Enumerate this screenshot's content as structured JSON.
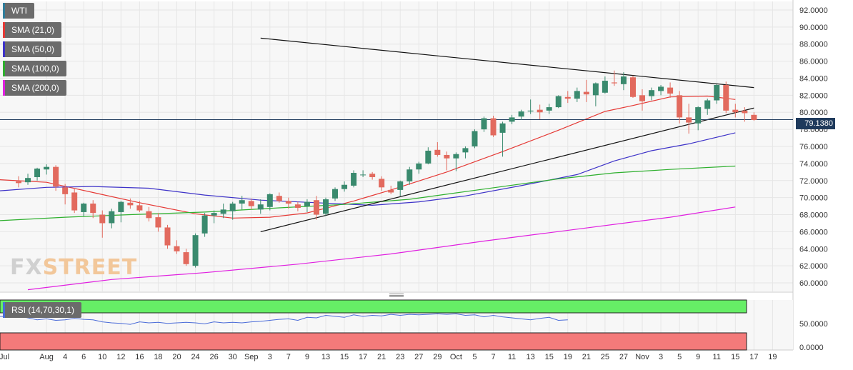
{
  "legend": {
    "items": [
      {
        "label": "WTI",
        "color": "#2e7d9b"
      },
      {
        "label": "SMA (21,0)",
        "color": "#e53935"
      },
      {
        "label": "SMA (50,0)",
        "color": "#3d32c8"
      },
      {
        "label": "SMA (100,0)",
        "color": "#2eaf2e"
      },
      {
        "label": "SMA (200,0)",
        "color": "#e020e0"
      }
    ]
  },
  "rsi": {
    "label": "RSI (14,70,30,1)",
    "color": "#4a6bd8",
    "overbought_color": "#66ee66",
    "oversold_color": "#f47a7a",
    "values": [
      63,
      62,
      64,
      60,
      56,
      58,
      55,
      56,
      59,
      57,
      56,
      52,
      50,
      49,
      47,
      52,
      50,
      51,
      49,
      50,
      51,
      50,
      48,
      52,
      50,
      51,
      50,
      52,
      53,
      55,
      57,
      58,
      55,
      61,
      60,
      65,
      63,
      61,
      66,
      63,
      65,
      64,
      67,
      65,
      67,
      66,
      67,
      68,
      67,
      68,
      65,
      66,
      62,
      65,
      62,
      60,
      58,
      56,
      59,
      61,
      55,
      56
    ]
  },
  "watermark": {
    "part1": "FX",
    "part2": "STREET"
  },
  "current_price": {
    "label": "79.1380",
    "value": 79.138
  },
  "colors": {
    "up": "#3a8a6e",
    "down": "#e26a5e",
    "grid": "#e6e6e6",
    "trendline": "#111111",
    "price_line": "#1f3a5c"
  },
  "chart_data": {
    "type": "candlestick",
    "title": "",
    "ylim": [
      59,
      93
    ],
    "yticks": [
      "92.0000",
      "90.0000",
      "88.0000",
      "86.0000",
      "84.0000",
      "82.0000",
      "80.0000",
      "78.0000",
      "76.0000",
      "74.0000",
      "72.0000",
      "70.0000",
      "68.0000",
      "66.0000",
      "64.0000",
      "62.0000",
      "60.0000"
    ],
    "ytick_values": [
      92,
      90,
      88,
      86,
      84,
      82,
      80,
      78,
      76,
      74,
      72,
      70,
      68,
      66,
      64,
      62,
      60
    ],
    "xticks": [
      "Jul",
      "Aug",
      "4",
      "6",
      "10",
      "12",
      "16",
      "18",
      "20",
      "24",
      "26",
      "30",
      "Sep",
      "3",
      "7",
      "9",
      "13",
      "15",
      "17",
      "21",
      "23",
      "27",
      "29",
      "Oct",
      "5",
      "7",
      "11",
      "13",
      "15",
      "19",
      "21",
      "25",
      "27",
      "Nov",
      "3",
      "5",
      "9",
      "11",
      "15",
      "17",
      "19"
    ],
    "xtick_index": [
      -2,
      3,
      5,
      7,
      9,
      11,
      13,
      15,
      17,
      19,
      21,
      23,
      25,
      27,
      29,
      31,
      33,
      35,
      37,
      39,
      41,
      43,
      45,
      47,
      49,
      51,
      53,
      55,
      57,
      59,
      61,
      63,
      65,
      67,
      69,
      71,
      73,
      75,
      77,
      79,
      81
    ],
    "candles": [
      {
        "o": 71.9,
        "h": 72.5,
        "l": 71.2,
        "c": 71.7
      },
      {
        "o": 71.8,
        "h": 72.8,
        "l": 71.5,
        "c": 72.3
      },
      {
        "o": 72.4,
        "h": 73.5,
        "l": 72.0,
        "c": 73.4
      },
      {
        "o": 73.3,
        "h": 73.9,
        "l": 72.7,
        "c": 73.6
      },
      {
        "o": 73.6,
        "h": 73.8,
        "l": 70.8,
        "c": 71.3
      },
      {
        "o": 71.2,
        "h": 71.6,
        "l": 69.2,
        "c": 70.4
      },
      {
        "o": 70.6,
        "h": 71.0,
        "l": 68.2,
        "c": 68.5
      },
      {
        "o": 68.3,
        "h": 69.4,
        "l": 67.8,
        "c": 69.3
      },
      {
        "o": 69.3,
        "h": 69.7,
        "l": 67.6,
        "c": 68.2
      },
      {
        "o": 68.0,
        "h": 68.5,
        "l": 65.3,
        "c": 67.0
      },
      {
        "o": 67.0,
        "h": 68.7,
        "l": 66.4,
        "c": 68.4
      },
      {
        "o": 68.3,
        "h": 69.6,
        "l": 67.1,
        "c": 69.5
      },
      {
        "o": 69.4,
        "h": 69.9,
        "l": 68.7,
        "c": 69.1
      },
      {
        "o": 69.1,
        "h": 69.6,
        "l": 68.3,
        "c": 68.5
      },
      {
        "o": 68.4,
        "h": 68.9,
        "l": 67.2,
        "c": 67.6
      },
      {
        "o": 67.7,
        "h": 68.2,
        "l": 66.0,
        "c": 66.5
      },
      {
        "o": 66.5,
        "h": 66.8,
        "l": 64.0,
        "c": 64.4
      },
      {
        "o": 64.3,
        "h": 65.0,
        "l": 63.4,
        "c": 63.7
      },
      {
        "o": 63.6,
        "h": 64.0,
        "l": 62.0,
        "c": 62.2
      },
      {
        "o": 62.0,
        "h": 65.8,
        "l": 61.8,
        "c": 65.6
      },
      {
        "o": 65.8,
        "h": 68.2,
        "l": 65.4,
        "c": 67.9
      },
      {
        "o": 67.9,
        "h": 68.5,
        "l": 67.0,
        "c": 68.2
      },
      {
        "o": 68.1,
        "h": 69.3,
        "l": 67.6,
        "c": 68.6
      },
      {
        "o": 68.4,
        "h": 69.5,
        "l": 67.4,
        "c": 69.3
      },
      {
        "o": 69.3,
        "h": 70.2,
        "l": 68.6,
        "c": 69.7
      },
      {
        "o": 69.6,
        "h": 69.9,
        "l": 68.6,
        "c": 69.0
      },
      {
        "o": 68.6,
        "h": 69.8,
        "l": 68.1,
        "c": 69.2
      },
      {
        "o": 68.9,
        "h": 70.5,
        "l": 68.5,
        "c": 70.4
      },
      {
        "o": 70.2,
        "h": 70.6,
        "l": 69.4,
        "c": 69.6
      },
      {
        "o": 69.6,
        "h": 70.0,
        "l": 68.7,
        "c": 69.3
      },
      {
        "o": 69.2,
        "h": 69.5,
        "l": 68.4,
        "c": 68.8
      },
      {
        "o": 69.0,
        "h": 69.8,
        "l": 68.3,
        "c": 69.5
      },
      {
        "o": 69.7,
        "h": 70.2,
        "l": 67.4,
        "c": 68.0
      },
      {
        "o": 68.1,
        "h": 70.0,
        "l": 67.9,
        "c": 69.8
      },
      {
        "o": 69.9,
        "h": 71.2,
        "l": 69.6,
        "c": 71.0
      },
      {
        "o": 71.0,
        "h": 71.9,
        "l": 70.7,
        "c": 71.5
      },
      {
        "o": 71.4,
        "h": 73.2,
        "l": 71.2,
        "c": 72.9
      },
      {
        "o": 72.7,
        "h": 73.2,
        "l": 72.4,
        "c": 72.7
      },
      {
        "o": 72.8,
        "h": 73.0,
        "l": 72.1,
        "c": 72.4
      },
      {
        "o": 72.2,
        "h": 72.5,
        "l": 70.8,
        "c": 71.2
      },
      {
        "o": 70.9,
        "h": 71.4,
        "l": 70.4,
        "c": 70.6
      },
      {
        "o": 70.9,
        "h": 72.0,
        "l": 70.2,
        "c": 71.9
      },
      {
        "o": 71.9,
        "h": 73.6,
        "l": 71.5,
        "c": 73.3
      },
      {
        "o": 73.3,
        "h": 74.2,
        "l": 72.8,
        "c": 74.0
      },
      {
        "o": 74.0,
        "h": 75.9,
        "l": 73.9,
        "c": 75.5
      },
      {
        "o": 75.6,
        "h": 76.5,
        "l": 74.8,
        "c": 75.0
      },
      {
        "o": 75.0,
        "h": 75.4,
        "l": 73.2,
        "c": 74.6
      },
      {
        "o": 74.6,
        "h": 75.3,
        "l": 73.1,
        "c": 75.1
      },
      {
        "o": 75.3,
        "h": 76.0,
        "l": 74.6,
        "c": 75.8
      },
      {
        "o": 76.0,
        "h": 78.0,
        "l": 75.8,
        "c": 77.8
      },
      {
        "o": 78.0,
        "h": 79.5,
        "l": 77.7,
        "c": 79.3
      },
      {
        "o": 79.3,
        "h": 79.6,
        "l": 77.1,
        "c": 77.3
      },
      {
        "o": 77.6,
        "h": 78.9,
        "l": 74.8,
        "c": 78.7
      },
      {
        "o": 78.9,
        "h": 79.7,
        "l": 78.6,
        "c": 79.4
      },
      {
        "o": 79.5,
        "h": 80.3,
        "l": 79.1,
        "c": 80.1
      },
      {
        "o": 80.1,
        "h": 81.5,
        "l": 79.8,
        "c": 80.2
      },
      {
        "o": 80.3,
        "h": 80.9,
        "l": 79.2,
        "c": 80.0
      },
      {
        "o": 80.2,
        "h": 81.0,
        "l": 79.8,
        "c": 80.6
      },
      {
        "o": 80.6,
        "h": 82.0,
        "l": 80.5,
        "c": 81.9
      },
      {
        "o": 81.8,
        "h": 82.5,
        "l": 81.1,
        "c": 81.6
      },
      {
        "o": 81.6,
        "h": 82.9,
        "l": 81.2,
        "c": 82.5
      },
      {
        "o": 82.4,
        "h": 83.8,
        "l": 81.2,
        "c": 82.1
      },
      {
        "o": 82.0,
        "h": 83.5,
        "l": 80.7,
        "c": 83.4
      },
      {
        "o": 82.3,
        "h": 84.2,
        "l": 82.2,
        "c": 83.7
      },
      {
        "o": 83.5,
        "h": 84.9,
        "l": 83.1,
        "c": 83.4
      },
      {
        "o": 83.3,
        "h": 84.7,
        "l": 82.6,
        "c": 84.2
      },
      {
        "o": 84.1,
        "h": 84.3,
        "l": 81.7,
        "c": 81.8
      },
      {
        "o": 82.0,
        "h": 82.7,
        "l": 80.2,
        "c": 81.3
      },
      {
        "o": 81.9,
        "h": 82.9,
        "l": 81.4,
        "c": 82.6
      },
      {
        "o": 82.5,
        "h": 83.2,
        "l": 82.0,
        "c": 83.0
      },
      {
        "o": 82.9,
        "h": 83.5,
        "l": 81.7,
        "c": 82.2
      },
      {
        "o": 82.0,
        "h": 82.5,
        "l": 78.7,
        "c": 79.4
      },
      {
        "o": 79.4,
        "h": 81.0,
        "l": 77.5,
        "c": 78.8
      },
      {
        "o": 78.7,
        "h": 80.7,
        "l": 77.9,
        "c": 80.6
      },
      {
        "o": 80.4,
        "h": 81.6,
        "l": 79.7,
        "c": 81.4
      },
      {
        "o": 81.4,
        "h": 83.3,
        "l": 81.0,
        "c": 83.2
      },
      {
        "o": 83.2,
        "h": 83.6,
        "l": 79.9,
        "c": 80.2
      },
      {
        "o": 80.3,
        "h": 81.0,
        "l": 79.4,
        "c": 80.0
      },
      {
        "o": 80.2,
        "h": 80.6,
        "l": 78.9,
        "c": 79.9
      },
      {
        "o": 79.7,
        "h": 80.0,
        "l": 79.0,
        "c": 79.1
      }
    ],
    "sma": [
      {
        "name": "SMA (21,0)",
        "color": "#e53935",
        "points": [
          [
            -2,
            72.1
          ],
          [
            3,
            71.8
          ],
          [
            8,
            70.6
          ],
          [
            13,
            69.4
          ],
          [
            19,
            68.1
          ],
          [
            23,
            67.6
          ],
          [
            27,
            67.7
          ],
          [
            31,
            68.2
          ],
          [
            36,
            69.6
          ],
          [
            40,
            70.9
          ],
          [
            46,
            73.0
          ],
          [
            52,
            75.4
          ],
          [
            58,
            77.9
          ],
          [
            63,
            80.1
          ],
          [
            66,
            80.8
          ],
          [
            70,
            81.8
          ],
          [
            74,
            81.9
          ],
          [
            77,
            81.5
          ]
        ]
      },
      {
        "name": "SMA (50,0)",
        "color": "#3d32c8",
        "points": [
          [
            -2,
            70.8
          ],
          [
            3,
            71.2
          ],
          [
            8,
            71.3
          ],
          [
            14,
            71.1
          ],
          [
            20,
            70.3
          ],
          [
            26,
            69.7
          ],
          [
            32,
            69.4
          ],
          [
            38,
            69.1
          ],
          [
            43,
            69.5
          ],
          [
            48,
            70.2
          ],
          [
            54,
            71.4
          ],
          [
            60,
            72.7
          ],
          [
            64,
            74.3
          ],
          [
            68,
            75.5
          ],
          [
            72,
            76.3
          ],
          [
            77,
            77.6
          ]
        ]
      },
      {
        "name": "SMA (100,0)",
        "color": "#2eaf2e",
        "points": [
          [
            -2,
            67.3
          ],
          [
            5,
            67.7
          ],
          [
            12,
            68.0
          ],
          [
            20,
            68.3
          ],
          [
            28,
            68.8
          ],
          [
            35,
            69.2
          ],
          [
            42,
            69.8
          ],
          [
            50,
            71.0
          ],
          [
            58,
            72.2
          ],
          [
            64,
            72.9
          ],
          [
            70,
            73.3
          ],
          [
            77,
            73.7
          ]
        ]
      },
      {
        "name": "SMA (200,0)",
        "color": "#e020e0",
        "points": [
          [
            1,
            59.2
          ],
          [
            10,
            60.4
          ],
          [
            20,
            61.2
          ],
          [
            30,
            62.2
          ],
          [
            40,
            63.4
          ],
          [
            50,
            64.9
          ],
          [
            60,
            66.3
          ],
          [
            70,
            67.7
          ],
          [
            77,
            68.9
          ]
        ]
      }
    ],
    "trendlines": [
      {
        "from": [
          26,
          88.7
        ],
        "to": [
          79,
          82.9
        ]
      },
      {
        "from": [
          26,
          66.0
        ],
        "to": [
          79,
          80.5
        ]
      }
    ],
    "current_price": 79.138,
    "rsi_ylim": [
      0,
      100
    ],
    "rsi_yticks": [
      "50.0000",
      "0.0000"
    ],
    "rsi_ytick_values": [
      50,
      0
    ]
  }
}
